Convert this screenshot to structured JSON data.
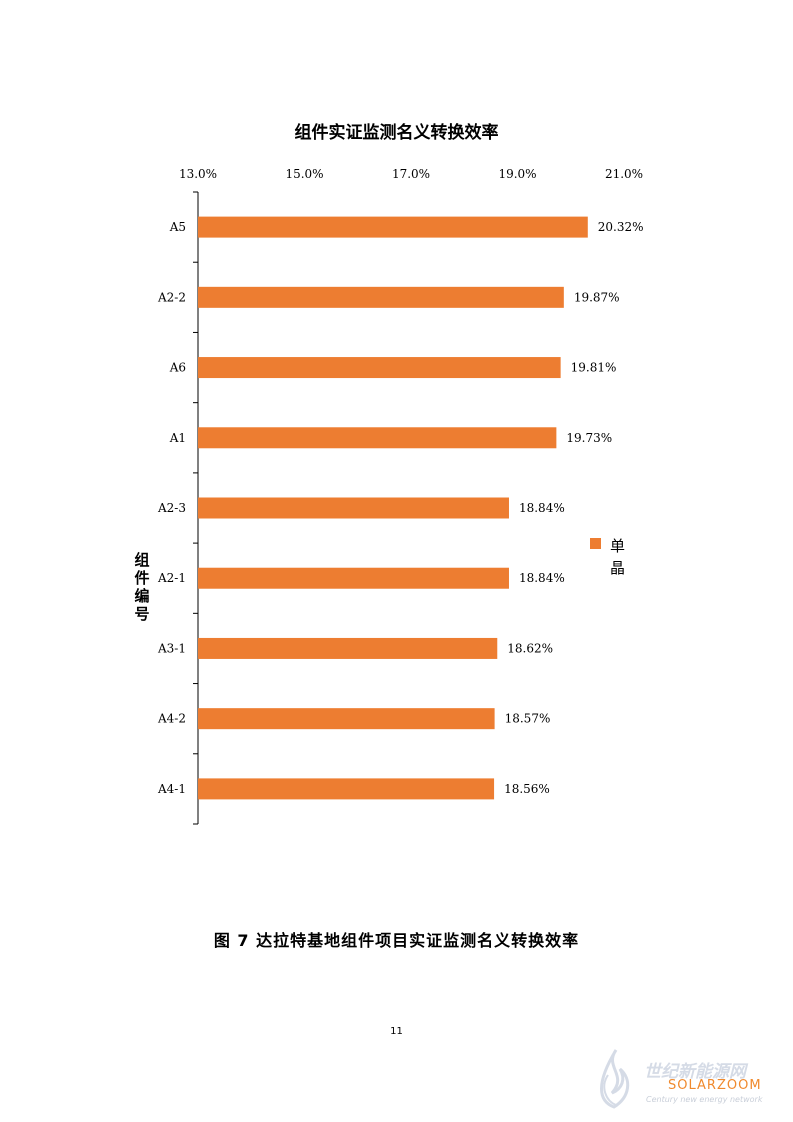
{
  "chart_data": {
    "type": "bar",
    "orientation": "horizontal",
    "title": "组件实证监测名义转换效率",
    "ylabel": "组件编号",
    "xlabel": "",
    "x_axis_position": "top",
    "xlim": [
      13.0,
      21.0
    ],
    "x_ticks": [
      "13.0%",
      "15.0%",
      "17.0%",
      "19.0%",
      "21.0%"
    ],
    "x_tick_values": [
      13.0,
      15.0,
      17.0,
      19.0,
      21.0
    ],
    "categories": [
      "A5",
      "A2-2",
      "A6",
      "A1",
      "A2-3",
      "A2-1",
      "A3-1",
      "A4-2",
      "A4-1"
    ],
    "series": [
      {
        "name": "单晶",
        "color": "#ED7D31",
        "values": [
          20.32,
          19.87,
          19.81,
          19.73,
          18.84,
          18.84,
          18.62,
          18.57,
          18.56
        ],
        "labels": [
          "20.32%",
          "19.87%",
          "19.81%",
          "19.73%",
          "18.84%",
          "18.84%",
          "18.62%",
          "18.57%",
          "18.56%"
        ]
      }
    ],
    "legend_position": "right",
    "grid": false
  },
  "legend": {
    "label": "单晶",
    "color": "#ED7D31"
  },
  "caption": "图 7  达拉特基地组件项目实证监测名义转换效率",
  "page_number": "11",
  "watermark": {
    "cn": "世纪新能源网",
    "brand": "SOLARZOOM",
    "en": "Century new energy network"
  }
}
